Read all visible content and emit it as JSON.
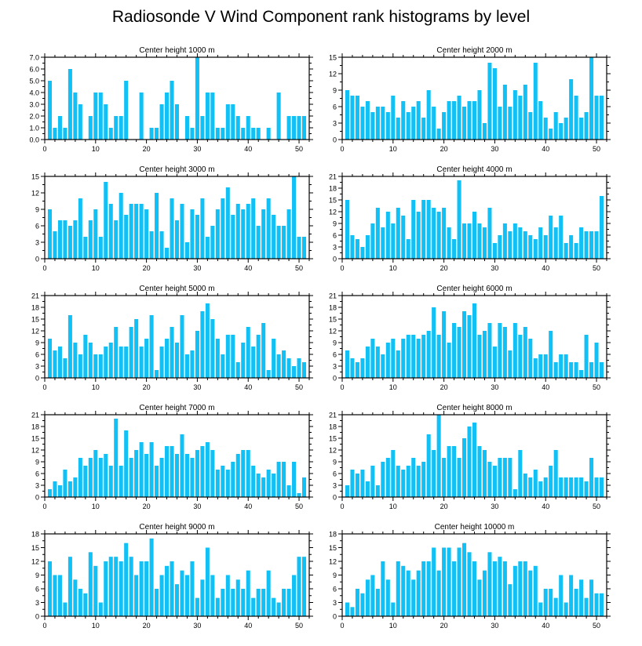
{
  "title": "Radiosonde V Wind Component rank histograms by level",
  "bar_color": "#11c1f6",
  "chart_data": [
    {
      "type": "bar",
      "title": "Center height 1000 m",
      "categories": [
        1,
        2,
        3,
        4,
        5,
        6,
        7,
        8,
        9,
        10,
        11,
        12,
        13,
        14,
        15,
        16,
        17,
        18,
        19,
        20,
        21,
        22,
        23,
        24,
        25,
        26,
        27,
        28,
        29,
        30,
        31,
        32,
        33,
        34,
        35,
        36,
        37,
        38,
        39,
        40,
        41,
        42,
        43,
        44,
        45,
        46,
        47,
        48,
        49,
        50,
        51
      ],
      "values": [
        5,
        1,
        2,
        1,
        6,
        4,
        3,
        0,
        2,
        4,
        4,
        3,
        1,
        2,
        2,
        5,
        0,
        0,
        4,
        0,
        1,
        1,
        3,
        4,
        5,
        3,
        0,
        2,
        1,
        7,
        2,
        4,
        4,
        1,
        1,
        3,
        3,
        2,
        1,
        2,
        1,
        1,
        0,
        1,
        0,
        4,
        0,
        2,
        2,
        2,
        2
      ],
      "ylim": [
        0,
        7
      ],
      "yticks": [
        "0.0",
        "1.0",
        "2.0",
        "3.0",
        "4.0",
        "5.0",
        "6.0",
        "7.0"
      ],
      "xticks": [
        0,
        10,
        20,
        30,
        40,
        50
      ]
    },
    {
      "type": "bar",
      "title": "Center height 2000 m",
      "categories": [
        1,
        2,
        3,
        4,
        5,
        6,
        7,
        8,
        9,
        10,
        11,
        12,
        13,
        14,
        15,
        16,
        17,
        18,
        19,
        20,
        21,
        22,
        23,
        24,
        25,
        26,
        27,
        28,
        29,
        30,
        31,
        32,
        33,
        34,
        35,
        36,
        37,
        38,
        39,
        40,
        41,
        42,
        43,
        44,
        45,
        46,
        47,
        48,
        49,
        50,
        51
      ],
      "values": [
        9,
        8,
        8,
        6,
        7,
        5,
        6,
        6,
        5,
        8,
        4,
        7,
        5,
        6,
        7,
        4,
        9,
        6,
        2,
        5,
        7,
        7,
        8,
        6,
        7,
        7,
        9,
        3,
        14,
        13,
        6,
        10,
        6,
        9,
        8,
        10,
        5,
        14,
        7,
        4,
        2,
        5,
        3,
        4,
        11,
        8,
        4,
        5,
        15,
        8,
        8
      ],
      "ylim": [
        0,
        15
      ],
      "yticks": [
        "0",
        "3",
        "6",
        "9",
        "12",
        "15"
      ],
      "xticks": [
        0,
        10,
        20,
        30,
        40,
        50
      ]
    },
    {
      "type": "bar",
      "title": "Center height 3000 m",
      "categories": [
        1,
        2,
        3,
        4,
        5,
        6,
        7,
        8,
        9,
        10,
        11,
        12,
        13,
        14,
        15,
        16,
        17,
        18,
        19,
        20,
        21,
        22,
        23,
        24,
        25,
        26,
        27,
        28,
        29,
        30,
        31,
        32,
        33,
        34,
        35,
        36,
        37,
        38,
        39,
        40,
        41,
        42,
        43,
        44,
        45,
        46,
        47,
        48,
        49,
        50,
        51
      ],
      "values": [
        9,
        5,
        7,
        7,
        6,
        7,
        11,
        4,
        7,
        9,
        4,
        14,
        10,
        7,
        12,
        8,
        10,
        10,
        10,
        9,
        5,
        12,
        5,
        2,
        11,
        7,
        10,
        3,
        9,
        8,
        11,
        4,
        6,
        9,
        11,
        13,
        8,
        10,
        9,
        10,
        11,
        6,
        9,
        11,
        8,
        6,
        6,
        9,
        15,
        4,
        4
      ],
      "ylim": [
        0,
        15
      ],
      "yticks": [
        "0",
        "3",
        "6",
        "9",
        "12",
        "15"
      ],
      "xticks": [
        0,
        10,
        20,
        30,
        40,
        50
      ]
    },
    {
      "type": "bar",
      "title": "Center height 4000 m",
      "categories": [
        1,
        2,
        3,
        4,
        5,
        6,
        7,
        8,
        9,
        10,
        11,
        12,
        13,
        14,
        15,
        16,
        17,
        18,
        19,
        20,
        21,
        22,
        23,
        24,
        25,
        26,
        27,
        28,
        29,
        30,
        31,
        32,
        33,
        34,
        35,
        36,
        37,
        38,
        39,
        40,
        41,
        42,
        43,
        44,
        45,
        46,
        47,
        48,
        49,
        50,
        51
      ],
      "values": [
        15,
        6,
        5,
        3,
        6,
        9,
        13,
        8,
        12,
        9,
        13,
        11,
        5,
        15,
        12,
        15,
        15,
        13,
        12,
        13,
        8,
        5,
        20,
        9,
        9,
        12,
        9,
        8,
        13,
        4,
        6,
        9,
        7,
        9,
        8,
        7,
        6,
        5,
        8,
        6,
        11,
        8,
        11,
        4,
        6,
        4,
        8,
        7,
        7,
        7,
        16
      ],
      "ylim": [
        0,
        21
      ],
      "yticks": [
        "0",
        "3",
        "6",
        "9",
        "12",
        "15",
        "18",
        "21"
      ],
      "xticks": [
        0,
        10,
        20,
        30,
        40,
        50
      ]
    },
    {
      "type": "bar",
      "title": "Center height 5000 m",
      "categories": [
        1,
        2,
        3,
        4,
        5,
        6,
        7,
        8,
        9,
        10,
        11,
        12,
        13,
        14,
        15,
        16,
        17,
        18,
        19,
        20,
        21,
        22,
        23,
        24,
        25,
        26,
        27,
        28,
        29,
        30,
        31,
        32,
        33,
        34,
        35,
        36,
        37,
        38,
        39,
        40,
        41,
        42,
        43,
        44,
        45,
        46,
        47,
        48,
        49,
        50,
        51
      ],
      "values": [
        10,
        7,
        8,
        5,
        16,
        9,
        6,
        11,
        9,
        6,
        6,
        8,
        9,
        13,
        8,
        8,
        13,
        15,
        8,
        10,
        16,
        2,
        8,
        10,
        13,
        9,
        16,
        6,
        7,
        12,
        17,
        19,
        15,
        10,
        6,
        11,
        11,
        4,
        9,
        13,
        8,
        11,
        14,
        2,
        10,
        6,
        7,
        5,
        3,
        5,
        4
      ],
      "ylim": [
        0,
        21
      ],
      "yticks": [
        "0",
        "3",
        "6",
        "9",
        "12",
        "15",
        "18",
        "21"
      ],
      "xticks": [
        0,
        10,
        20,
        30,
        40,
        50
      ]
    },
    {
      "type": "bar",
      "title": "Center height 6000 m",
      "categories": [
        1,
        2,
        3,
        4,
        5,
        6,
        7,
        8,
        9,
        10,
        11,
        12,
        13,
        14,
        15,
        16,
        17,
        18,
        19,
        20,
        21,
        22,
        23,
        24,
        25,
        26,
        27,
        28,
        29,
        30,
        31,
        32,
        33,
        34,
        35,
        36,
        37,
        38,
        39,
        40,
        41,
        42,
        43,
        44,
        45,
        46,
        47,
        48,
        49,
        50,
        51
      ],
      "values": [
        7,
        5,
        4,
        5,
        8,
        10,
        8,
        6,
        9,
        10,
        7,
        10,
        11,
        11,
        10,
        11,
        12,
        18,
        11,
        17,
        9,
        14,
        13,
        17,
        16,
        19,
        11,
        12,
        14,
        8,
        14,
        13,
        7,
        14,
        11,
        13,
        10,
        5,
        6,
        6,
        12,
        4,
        6,
        6,
        4,
        4,
        2,
        11,
        4,
        9,
        4
      ],
      "ylim": [
        0,
        21
      ],
      "yticks": [
        "0",
        "3",
        "6",
        "9",
        "12",
        "15",
        "18",
        "21"
      ],
      "xticks": [
        0,
        10,
        20,
        30,
        40,
        50
      ]
    },
    {
      "type": "bar",
      "title": "Center height 7000 m",
      "categories": [
        1,
        2,
        3,
        4,
        5,
        6,
        7,
        8,
        9,
        10,
        11,
        12,
        13,
        14,
        15,
        16,
        17,
        18,
        19,
        20,
        21,
        22,
        23,
        24,
        25,
        26,
        27,
        28,
        29,
        30,
        31,
        32,
        33,
        34,
        35,
        36,
        37,
        38,
        39,
        40,
        41,
        42,
        43,
        44,
        45,
        46,
        47,
        48,
        49,
        50,
        51
      ],
      "values": [
        2,
        4,
        3,
        7,
        4,
        5,
        10,
        8,
        10,
        12,
        10,
        11,
        8,
        20,
        8,
        17,
        10,
        12,
        14,
        11,
        14,
        8,
        10,
        13,
        13,
        11,
        16,
        11,
        10,
        12,
        13,
        14,
        12,
        7,
        8,
        7,
        9,
        11,
        12,
        12,
        8,
        6,
        5,
        7,
        6,
        9,
        9,
        3,
        9,
        1,
        5
      ],
      "ylim": [
        0,
        21
      ],
      "yticks": [
        "0",
        "3",
        "6",
        "9",
        "12",
        "15",
        "18",
        "21"
      ],
      "xticks": [
        0,
        10,
        20,
        30,
        40,
        50
      ]
    },
    {
      "type": "bar",
      "title": "Center height 8000 m",
      "categories": [
        1,
        2,
        3,
        4,
        5,
        6,
        7,
        8,
        9,
        10,
        11,
        12,
        13,
        14,
        15,
        16,
        17,
        18,
        19,
        20,
        21,
        22,
        23,
        24,
        25,
        26,
        27,
        28,
        29,
        30,
        31,
        32,
        33,
        34,
        35,
        36,
        37,
        38,
        39,
        40,
        41,
        42,
        43,
        44,
        45,
        46,
        47,
        48,
        49,
        50,
        51
      ],
      "values": [
        3,
        7,
        6,
        7,
        4,
        8,
        3,
        9,
        10,
        12,
        8,
        7,
        8,
        10,
        8,
        9,
        16,
        12,
        21,
        10,
        13,
        13,
        10,
        15,
        18,
        19,
        13,
        12,
        9,
        8,
        10,
        10,
        10,
        2,
        12,
        6,
        5,
        7,
        4,
        5,
        8,
        12,
        5,
        5,
        5,
        5,
        5,
        4,
        10,
        5,
        5
      ],
      "ylim": [
        0,
        21
      ],
      "yticks": [
        "0",
        "3",
        "6",
        "9",
        "12",
        "15",
        "18",
        "21"
      ],
      "xticks": [
        0,
        10,
        20,
        30,
        40,
        50
      ]
    },
    {
      "type": "bar",
      "title": "Center height 9000 m",
      "categories": [
        1,
        2,
        3,
        4,
        5,
        6,
        7,
        8,
        9,
        10,
        11,
        12,
        13,
        14,
        15,
        16,
        17,
        18,
        19,
        20,
        21,
        22,
        23,
        24,
        25,
        26,
        27,
        28,
        29,
        30,
        31,
        32,
        33,
        34,
        35,
        36,
        37,
        38,
        39,
        40,
        41,
        42,
        43,
        44,
        45,
        46,
        47,
        48,
        49,
        50,
        51
      ],
      "values": [
        12,
        9,
        9,
        3,
        13,
        8,
        6,
        5,
        14,
        11,
        3,
        12,
        13,
        13,
        12,
        16,
        13,
        9,
        12,
        12,
        17,
        6,
        9,
        11,
        12,
        7,
        10,
        9,
        12,
        4,
        8,
        15,
        9,
        4,
        6,
        9,
        6,
        8,
        6,
        10,
        4,
        6,
        6,
        10,
        4,
        3,
        6,
        6,
        9,
        13,
        13
      ],
      "ylim": [
        0,
        18
      ],
      "yticks": [
        "0",
        "3",
        "6",
        "9",
        "12",
        "15",
        "18"
      ],
      "xticks": [
        0,
        10,
        20,
        30,
        40,
        50
      ]
    },
    {
      "type": "bar",
      "title": "Center height 10000 m",
      "categories": [
        1,
        2,
        3,
        4,
        5,
        6,
        7,
        8,
        9,
        10,
        11,
        12,
        13,
        14,
        15,
        16,
        17,
        18,
        19,
        20,
        21,
        22,
        23,
        24,
        25,
        26,
        27,
        28,
        29,
        30,
        31,
        32,
        33,
        34,
        35,
        36,
        37,
        38,
        39,
        40,
        41,
        42,
        43,
        44,
        45,
        46,
        47,
        48,
        49,
        50,
        51
      ],
      "values": [
        3,
        2,
        6,
        5,
        8,
        9,
        6,
        12,
        8,
        3,
        12,
        11,
        10,
        8,
        10,
        12,
        12,
        15,
        10,
        15,
        15,
        12,
        15,
        16,
        14,
        12,
        8,
        10,
        14,
        12,
        13,
        12,
        7,
        11,
        12,
        12,
        10,
        11,
        3,
        6,
        6,
        4,
        9,
        3,
        9,
        6,
        8,
        4,
        8,
        5,
        5
      ],
      "ylim": [
        0,
        18
      ],
      "yticks": [
        "0",
        "3",
        "6",
        "9",
        "12",
        "15",
        "18"
      ],
      "xticks": [
        0,
        10,
        20,
        30,
        40,
        50
      ]
    }
  ]
}
